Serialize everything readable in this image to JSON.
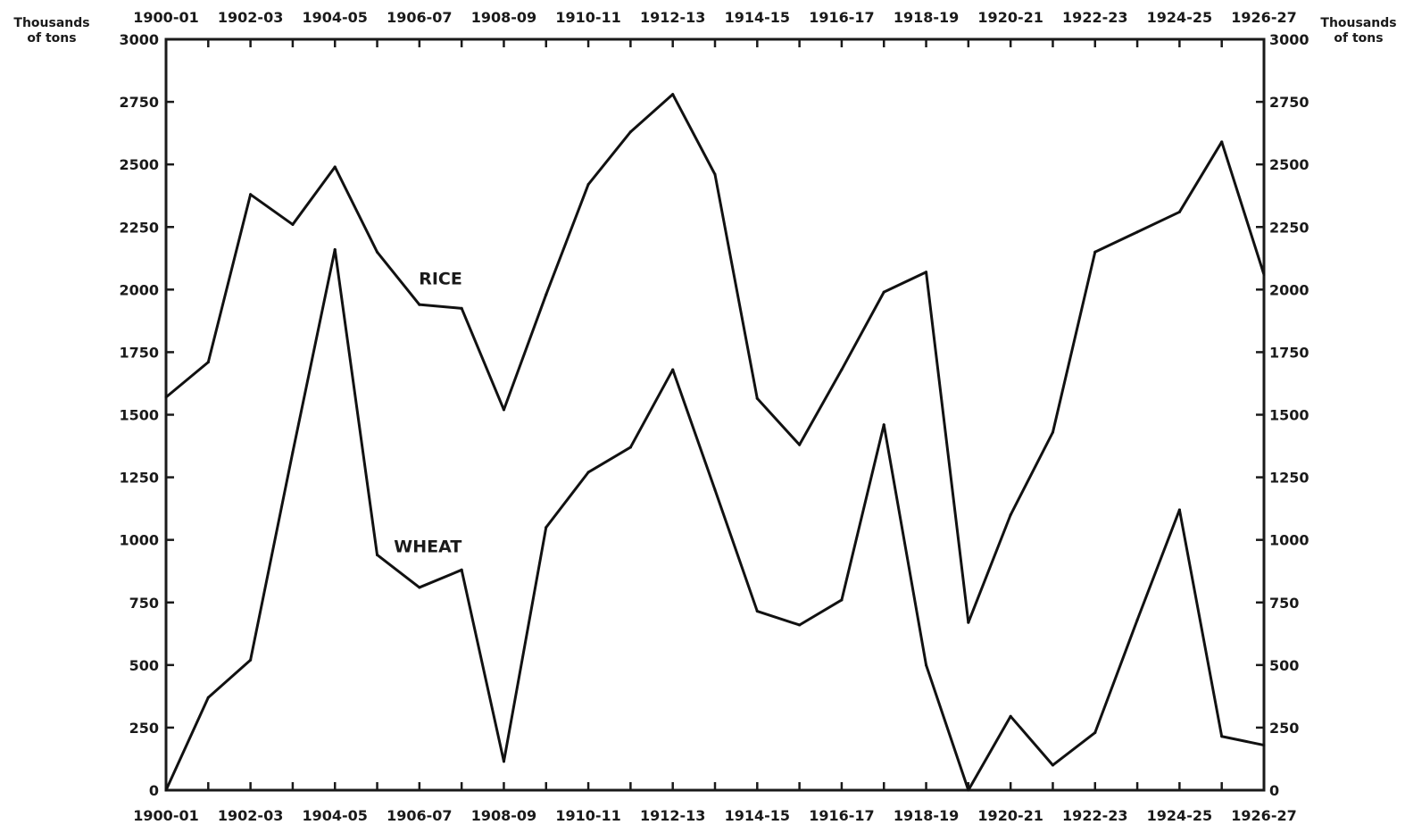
{
  "chart_data": {
    "type": "line",
    "title": "",
    "ylabel_left": [
      "Thousands",
      "of tons"
    ],
    "ylabel_right": [
      "Thousands",
      "of tons"
    ],
    "xlabel": "",
    "x_tick_labels": [
      "1900-01",
      "1902-03",
      "1904-05",
      "1906-07",
      "1908-09",
      "1910-11",
      "1912-13",
      "1914-15",
      "1916-17",
      "1918-19",
      "1920-21",
      "1922-23",
      "1924-25",
      "1926-27"
    ],
    "years": [
      "1900-01",
      "1901-02",
      "1902-03",
      "1903-04",
      "1904-05",
      "1905-06",
      "1906-07",
      "1907-08",
      "1908-09",
      "1909-10",
      "1910-11",
      "1911-12",
      "1912-13",
      "1913-14",
      "1914-15",
      "1915-16",
      "1916-17",
      "1917-18",
      "1918-19",
      "1919-20",
      "1920-21",
      "1921-22",
      "1922-23",
      "1923-24",
      "1924-25",
      "1925-26",
      "1926-27"
    ],
    "y_ticks": [
      0,
      250,
      500,
      750,
      1000,
      1250,
      1500,
      1750,
      2000,
      2250,
      2500,
      2750,
      3000
    ],
    "ylim": [
      0,
      3000
    ],
    "grid": false,
    "series": [
      {
        "name": "RICE",
        "values": [
          1570,
          1710,
          2380,
          2260,
          2490,
          2150,
          1940,
          1925,
          1520,
          1980,
          2420,
          2630,
          2780,
          2460,
          1565,
          1380,
          1680,
          1990,
          2070,
          670,
          1100,
          1430,
          2150,
          2230,
          2310,
          2590,
          2060
        ]
      },
      {
        "name": "WHEAT",
        "values": [
          0,
          370,
          520,
          1350,
          2160,
          940,
          810,
          880,
          115,
          1050,
          1270,
          1370,
          1680,
          1200,
          715,
          660,
          760,
          1460,
          500,
          0,
          295,
          100,
          230,
          680,
          1120,
          215,
          180
        ]
      }
    ]
  }
}
